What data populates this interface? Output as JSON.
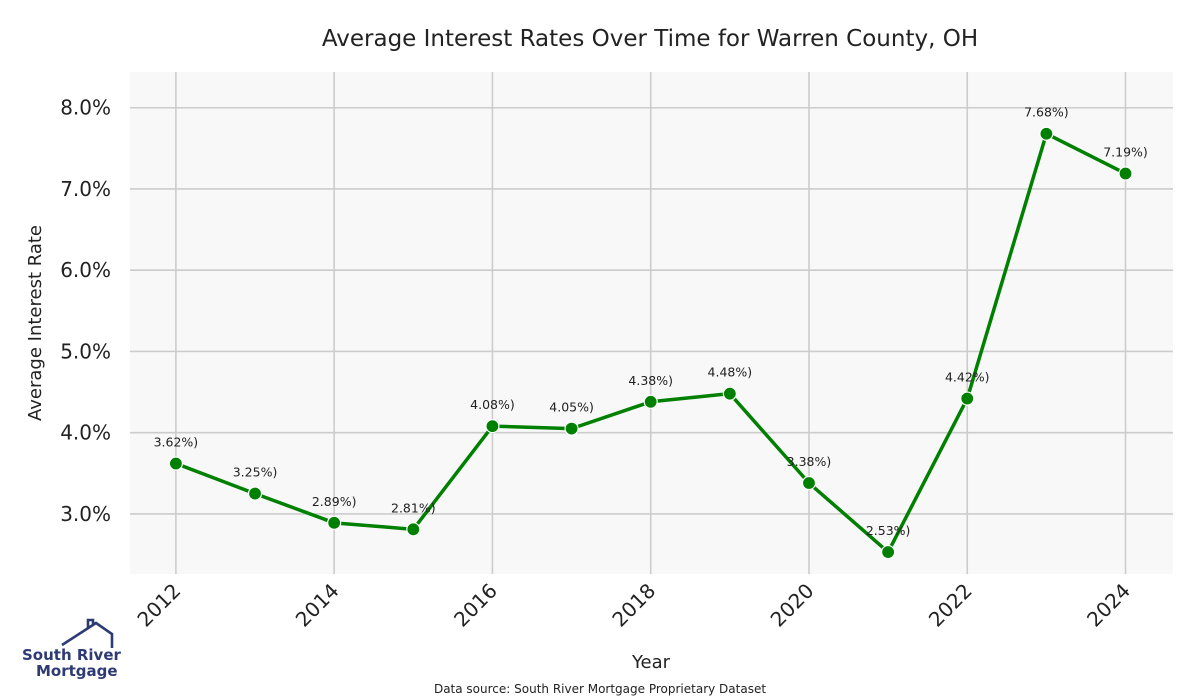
{
  "chart_data": {
    "type": "line",
    "title": "Average Interest Rates Over Time for Warren County, OH",
    "xlabel": "Year",
    "ylabel": "Average Interest Rate",
    "x": [
      2012,
      2013,
      2014,
      2015,
      2016,
      2017,
      2018,
      2019,
      2020,
      2021,
      2022,
      2023,
      2024
    ],
    "series": [
      {
        "values": [
          3.62,
          3.25,
          2.89,
          2.81,
          4.08,
          4.05,
          4.38,
          4.48,
          3.38,
          2.53,
          4.42,
          7.68,
          7.19
        ],
        "labels": [
          "3.62%)",
          "3.25%)",
          "2.89%)",
          "2.81%)",
          "4.08%)",
          "4.05%)",
          "4.38%)",
          "4.48%)",
          "3.38%)",
          "2.53%)",
          "4.42%)",
          "7.68%)",
          "7.19%)"
        ],
        "color": "#008000"
      }
    ],
    "xticks": [
      2012,
      2014,
      2016,
      2018,
      2020,
      2022,
      2024
    ],
    "xtick_labels": [
      "2012",
      "2014",
      "2016",
      "2018",
      "2020",
      "2022",
      "2024"
    ],
    "yticks": [
      3.0,
      4.0,
      5.0,
      6.0,
      7.0,
      8.0
    ],
    "ytick_labels": [
      "3.0%",
      "4.0%",
      "5.0%",
      "6.0%",
      "7.0%",
      "8.0%"
    ],
    "xlim": [
      2011.42,
      2024.6
    ],
    "ylim": [
      2.26,
      8.44
    ],
    "grid": true,
    "plot_background": "#f8f8f8",
    "grid_color": "#cccccc"
  },
  "source_text": "Data source: South River Mortgage Proprietary Dataset",
  "logo": {
    "line1": "South River",
    "line2": "Mortgage",
    "color": "#2e3a73"
  }
}
